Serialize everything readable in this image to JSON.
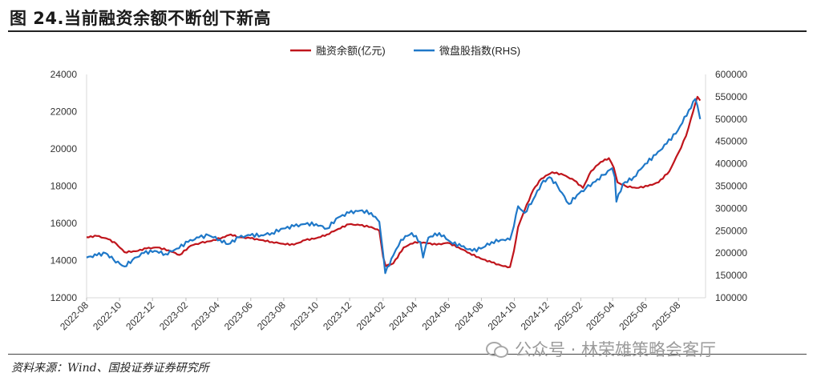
{
  "figure": {
    "title": "图 24.当前融资余额不断创下新高",
    "source": "资料来源：Wind、国投证券证券研究所",
    "watermark": "公众号 · 林荣雄策略会客厅",
    "watermark_icon": "wechat-icon"
  },
  "chart_data": {
    "type": "line",
    "title": "",
    "x_ticks": [
      "2022-08",
      "2022-10",
      "2022-12",
      "2023-02",
      "2023-04",
      "2023-06",
      "2023-08",
      "2023-10",
      "2023-12",
      "2024-02",
      "2024-04",
      "2024-06",
      "2024-08",
      "2024-10",
      "2024-12",
      "2025-02",
      "2025-04",
      "2025-06",
      "2025-08"
    ],
    "y_left": {
      "ticks": [
        "24000",
        "22000",
        "20000",
        "18000",
        "16000",
        "14000",
        "12000"
      ],
      "min": 12000,
      "max": 24000
    },
    "y_right": {
      "ticks": [
        "600000",
        "550000",
        "500000",
        "450000",
        "400000",
        "350000",
        "300000",
        "250000",
        "200000",
        "150000",
        "100000"
      ],
      "min": 100000,
      "max": 600000
    },
    "legend_position": "top-center",
    "grid": false,
    "series": [
      {
        "name": "融资余额(亿元)",
        "axis": "left",
        "color": "#c0151c",
        "points": [
          [
            "2022-08-01",
            15250
          ],
          [
            "2022-08-20",
            15320
          ],
          [
            "2022-09-10",
            15150
          ],
          [
            "2022-09-25",
            14900
          ],
          [
            "2022-10-10",
            14450
          ],
          [
            "2022-10-31",
            14500
          ],
          [
            "2022-11-20",
            14650
          ],
          [
            "2022-12-10",
            14700
          ],
          [
            "2022-12-31",
            14550
          ],
          [
            "2023-01-20",
            14300
          ],
          [
            "2023-02-10",
            14800
          ],
          [
            "2023-02-28",
            14950
          ],
          [
            "2023-03-20",
            15050
          ],
          [
            "2023-04-10",
            15250
          ],
          [
            "2023-04-25",
            15400
          ],
          [
            "2023-05-10",
            15250
          ],
          [
            "2023-05-31",
            15200
          ],
          [
            "2023-06-20",
            15100
          ],
          [
            "2023-07-10",
            15000
          ],
          [
            "2023-07-31",
            14900
          ],
          [
            "2023-08-20",
            14850
          ],
          [
            "2023-09-10",
            15100
          ],
          [
            "2023-09-30",
            15200
          ],
          [
            "2023-10-20",
            15400
          ],
          [
            "2023-11-10",
            15700
          ],
          [
            "2023-11-30",
            15950
          ],
          [
            "2023-12-20",
            15900
          ],
          [
            "2024-01-10",
            15800
          ],
          [
            "2024-01-25",
            15600
          ],
          [
            "2024-02-01",
            14200
          ],
          [
            "2024-02-06",
            13700
          ],
          [
            "2024-02-20",
            13850
          ],
          [
            "2024-03-10",
            14700
          ],
          [
            "2024-03-31",
            15000
          ],
          [
            "2024-04-20",
            14950
          ],
          [
            "2024-05-10",
            14850
          ],
          [
            "2024-05-31",
            14950
          ],
          [
            "2024-06-20",
            14700
          ],
          [
            "2024-07-10",
            14400
          ],
          [
            "2024-07-31",
            14100
          ],
          [
            "2024-08-20",
            13900
          ],
          [
            "2024-09-10",
            13700
          ],
          [
            "2024-09-23",
            13650
          ],
          [
            "2024-09-30",
            14500
          ],
          [
            "2024-10-08",
            15800
          ],
          [
            "2024-10-20",
            16700
          ],
          [
            "2024-11-05",
            17800
          ],
          [
            "2024-11-20",
            18400
          ],
          [
            "2024-12-10",
            18750
          ],
          [
            "2024-12-31",
            18600
          ],
          [
            "2025-01-20",
            18300
          ],
          [
            "2025-02-05",
            17900
          ],
          [
            "2025-02-20",
            18800
          ],
          [
            "2025-03-10",
            19300
          ],
          [
            "2025-03-25",
            19500
          ],
          [
            "2025-04-03",
            19000
          ],
          [
            "2025-04-10",
            18200
          ],
          [
            "2025-04-25",
            18000
          ],
          [
            "2025-05-15",
            17900
          ],
          [
            "2025-06-05",
            18000
          ],
          [
            "2025-06-25",
            18200
          ],
          [
            "2025-07-15",
            18800
          ],
          [
            "2025-08-01",
            19800
          ],
          [
            "2025-08-15",
            20700
          ],
          [
            "2025-08-28",
            22000
          ],
          [
            "2025-09-05",
            22800
          ],
          [
            "2025-09-10",
            22600
          ]
        ]
      },
      {
        "name": "微盘股指数(RHS)",
        "axis": "right",
        "color": "#1f78c8",
        "points": [
          [
            "2022-08-01",
            190000
          ],
          [
            "2022-08-20",
            195000
          ],
          [
            "2022-09-05",
            200000
          ],
          [
            "2022-09-20",
            185000
          ],
          [
            "2022-10-10",
            170000
          ],
          [
            "2022-10-25",
            185000
          ],
          [
            "2022-11-15",
            200000
          ],
          [
            "2022-12-05",
            205000
          ],
          [
            "2022-12-25",
            198000
          ],
          [
            "2023-01-15",
            210000
          ],
          [
            "2023-02-05",
            225000
          ],
          [
            "2023-02-25",
            235000
          ],
          [
            "2023-03-15",
            240000
          ],
          [
            "2023-04-05",
            230000
          ],
          [
            "2023-04-20",
            220000
          ],
          [
            "2023-05-10",
            235000
          ],
          [
            "2023-05-31",
            240000
          ],
          [
            "2023-06-20",
            240000
          ],
          [
            "2023-07-10",
            245000
          ],
          [
            "2023-07-31",
            255000
          ],
          [
            "2023-08-20",
            260000
          ],
          [
            "2023-09-10",
            265000
          ],
          [
            "2023-09-30",
            265000
          ],
          [
            "2023-10-20",
            255000
          ],
          [
            "2023-11-10",
            280000
          ],
          [
            "2023-11-30",
            290000
          ],
          [
            "2023-12-20",
            295000
          ],
          [
            "2024-01-10",
            290000
          ],
          [
            "2024-01-25",
            270000
          ],
          [
            "2024-02-01",
            200000
          ],
          [
            "2024-02-05",
            155000
          ],
          [
            "2024-02-20",
            195000
          ],
          [
            "2024-03-05",
            230000
          ],
          [
            "2024-03-25",
            245000
          ],
          [
            "2024-04-10",
            225000
          ],
          [
            "2024-04-15",
            190000
          ],
          [
            "2024-04-25",
            235000
          ],
          [
            "2024-05-15",
            245000
          ],
          [
            "2024-06-05",
            225000
          ],
          [
            "2024-06-25",
            215000
          ],
          [
            "2024-07-15",
            205000
          ],
          [
            "2024-07-31",
            210000
          ],
          [
            "2024-08-20",
            225000
          ],
          [
            "2024-09-10",
            230000
          ],
          [
            "2024-09-23",
            230000
          ],
          [
            "2024-09-30",
            260000
          ],
          [
            "2024-10-08",
            305000
          ],
          [
            "2024-10-20",
            290000
          ],
          [
            "2024-11-05",
            320000
          ],
          [
            "2024-11-20",
            355000
          ],
          [
            "2024-12-05",
            370000
          ],
          [
            "2024-12-20",
            350000
          ],
          [
            "2025-01-10",
            310000
          ],
          [
            "2025-01-25",
            330000
          ],
          [
            "2025-02-10",
            345000
          ],
          [
            "2025-02-28",
            360000
          ],
          [
            "2025-03-15",
            375000
          ],
          [
            "2025-03-31",
            390000
          ],
          [
            "2025-04-05",
            370000
          ],
          [
            "2025-04-08",
            315000
          ],
          [
            "2025-04-20",
            355000
          ],
          [
            "2025-05-10",
            370000
          ],
          [
            "2025-05-31",
            400000
          ],
          [
            "2025-06-20",
            420000
          ],
          [
            "2025-07-10",
            445000
          ],
          [
            "2025-07-31",
            475000
          ],
          [
            "2025-08-20",
            520000
          ],
          [
            "2025-09-01",
            545000
          ],
          [
            "2025-09-05",
            530000
          ],
          [
            "2025-09-10",
            500000
          ]
        ]
      }
    ]
  }
}
